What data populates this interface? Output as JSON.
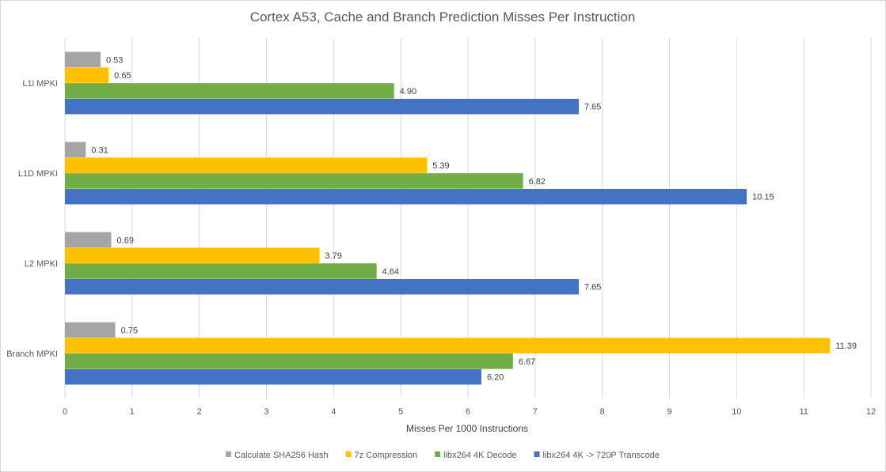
{
  "chart_data": {
    "type": "bar",
    "orientation": "horizontal",
    "title": "Cortex A53, Cache and Branch Prediction Misses Per Instruction",
    "xlabel": "Misses Per 1000 Instructions",
    "ylabel": "",
    "xlim": [
      0,
      12
    ],
    "x_ticks": [
      0,
      1,
      2,
      3,
      4,
      5,
      6,
      7,
      8,
      9,
      10,
      11,
      12
    ],
    "grid": true,
    "legend_position": "bottom",
    "categories": [
      "L1i MPKI",
      "L1D MPKI",
      "L2 MPKI",
      "Branch MPKI"
    ],
    "series": [
      {
        "name": "Calculate SHA256 Hash",
        "color": "#a5a5a5",
        "values": [
          0.53,
          0.31,
          0.69,
          0.75
        ],
        "labels": [
          "0.53",
          "0.31",
          "0.69",
          "0.75"
        ]
      },
      {
        "name": "7z Compression",
        "color": "#ffc000",
        "values": [
          0.65,
          5.39,
          3.79,
          11.39
        ],
        "labels": [
          "0.65",
          "5.39",
          "3.79",
          "11.39"
        ]
      },
      {
        "name": "libx264 4K Decode",
        "color": "#70ad47",
        "values": [
          4.9,
          6.82,
          4.64,
          6.67
        ],
        "labels": [
          "4.90",
          "6.82",
          "4.64",
          "6.67"
        ]
      },
      {
        "name": "libx264 4K -> 720P Transcode",
        "color": "#4472c4",
        "values": [
          7.65,
          10.15,
          7.65,
          6.2
        ],
        "labels": [
          "7.65",
          "10.15",
          "7.65",
          "6.20"
        ]
      }
    ]
  }
}
